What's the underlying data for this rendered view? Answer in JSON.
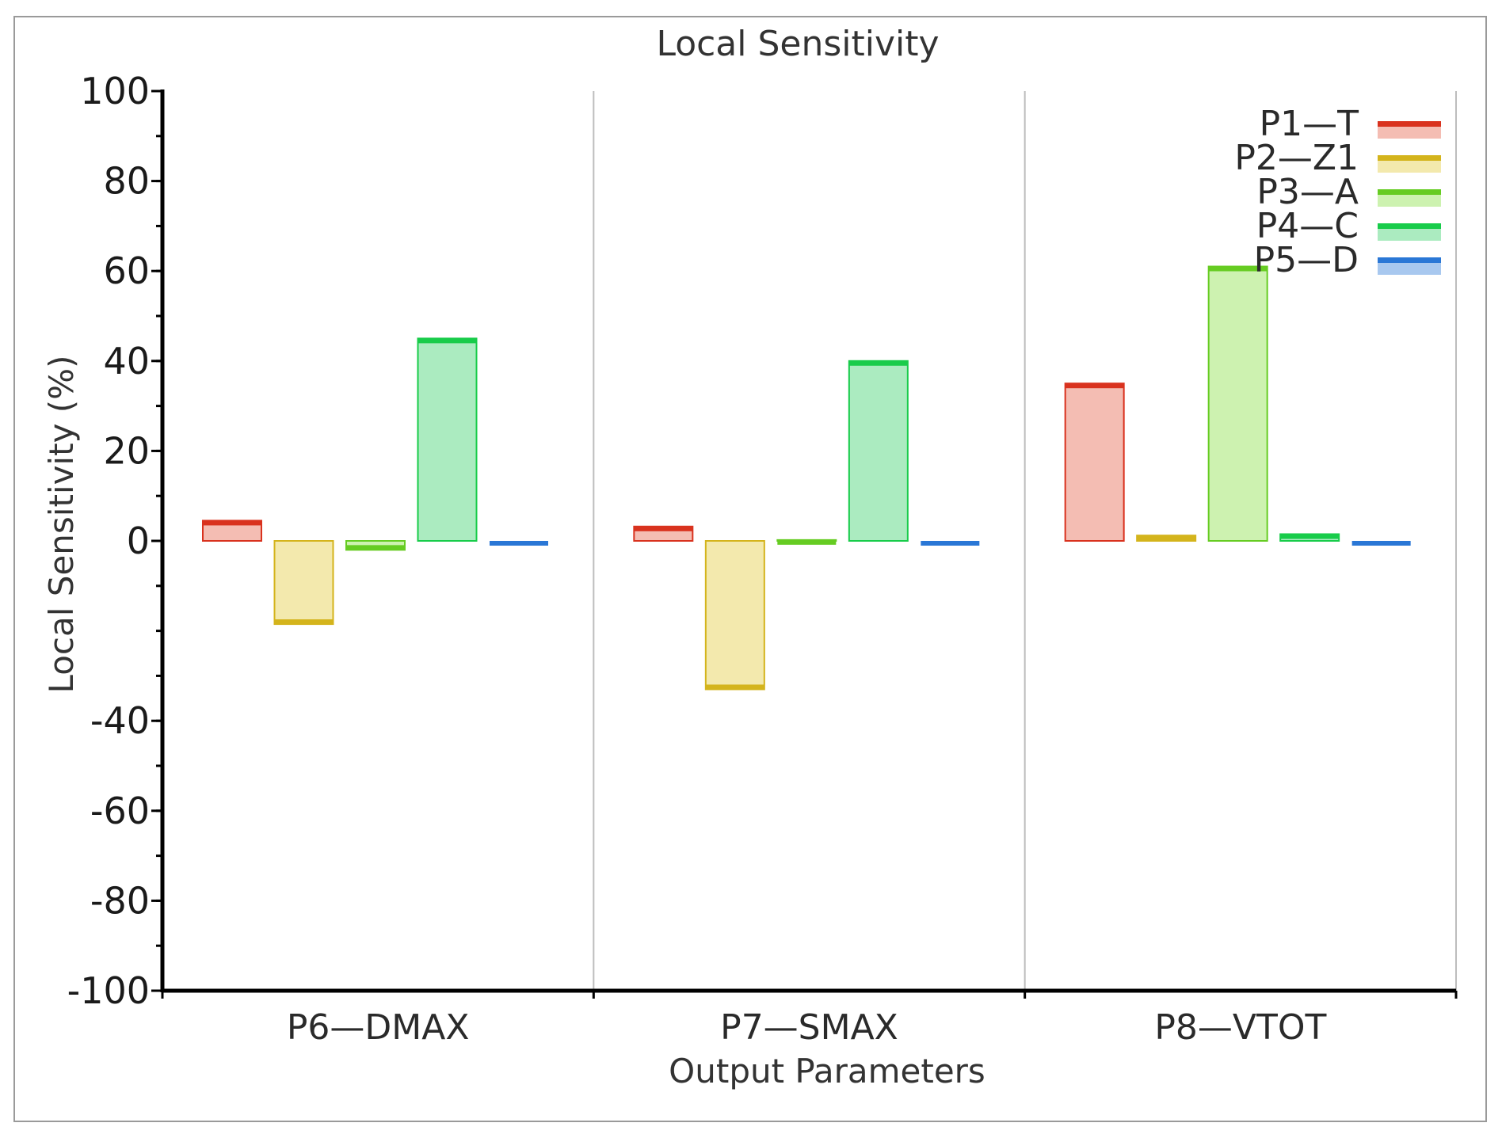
{
  "chart_data": {
    "type": "bar",
    "title": "Local Sensitivity",
    "xlabel": "Output Parameters",
    "ylabel": "Local Sensitivity (%)",
    "ylim": [
      -100,
      100
    ],
    "yticks": [
      100,
      80,
      60,
      40,
      20,
      0,
      -40,
      -60,
      -80,
      -100
    ],
    "yticks_labeled": [
      "100",
      "80",
      "60",
      "40",
      "20",
      "0",
      "-40",
      "-60",
      "-80",
      "-100"
    ],
    "categories": [
      "P6—DMAX",
      "P7—SMAX",
      "P8—VTOT"
    ],
    "legend_position": "top-right",
    "grid": false,
    "series": [
      {
        "name": "P1—T",
        "color": "#d9321e",
        "fill": "#f4bdb3",
        "values": [
          4.5,
          3.2,
          35.0
        ]
      },
      {
        "name": "P2—Z1",
        "color": "#d4b41c",
        "fill": "#f3e9ad",
        "values": [
          -18.5,
          -33.0,
          1.2
        ]
      },
      {
        "name": "P3—A",
        "color": "#66cc22",
        "fill": "#cdf2b0",
        "values": [
          -2.0,
          0.2,
          61.0
        ]
      },
      {
        "name": "P4—C",
        "color": "#18cc4a",
        "fill": "#abebc0",
        "values": [
          45.0,
          40.0,
          1.5
        ]
      },
      {
        "name": "P5—D",
        "color": "#2a77d6",
        "fill": "#a8c8ef",
        "values": [
          0.0,
          0.0,
          0.0
        ]
      }
    ]
  }
}
